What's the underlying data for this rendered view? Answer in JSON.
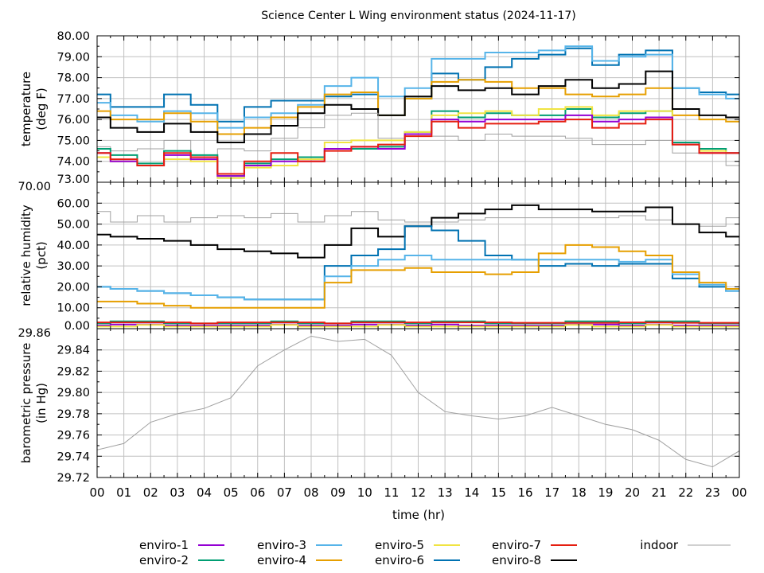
{
  "chart_data": {
    "type": "line",
    "title": "Science Center L Wing environment status (2024-11-17)",
    "xlabel": "time (hr)",
    "x": [
      0,
      1,
      2,
      3,
      4,
      5,
      6,
      7,
      8,
      9,
      10,
      11,
      12,
      13,
      14,
      15,
      16,
      17,
      18,
      19,
      20,
      21,
      22,
      23,
      24
    ],
    "xtick_labels": [
      "00",
      "01",
      "02",
      "03",
      "04",
      "05",
      "06",
      "07",
      "08",
      "09",
      "10",
      "11",
      "12",
      "13",
      "14",
      "15",
      "16",
      "17",
      "18",
      "19",
      "20",
      "21",
      "22",
      "23",
      "00"
    ],
    "xlim": [
      0,
      24
    ],
    "grid": true,
    "legend_placement": "bottom",
    "legend": [
      {
        "name": "enviro-1",
        "color": "#9400d3"
      },
      {
        "name": "enviro-2",
        "color": "#009e73"
      },
      {
        "name": "enviro-3",
        "color": "#56b4e9"
      },
      {
        "name": "enviro-4",
        "color": "#e69f00"
      },
      {
        "name": "enviro-5",
        "color": "#f0e442"
      },
      {
        "name": "enviro-6",
        "color": "#0072b2"
      },
      {
        "name": "enviro-7",
        "color": "#e51e10"
      },
      {
        "name": "enviro-8",
        "color": "#000000"
      },
      {
        "name": "indoor",
        "color": "#a0a0a0"
      }
    ],
    "panels": [
      {
        "ylabel": [
          "temperature",
          "(deg F)"
        ],
        "ylim": [
          73,
          80
        ],
        "yticks": [
          "73.00",
          "74.00",
          "75.00",
          "76.00",
          "77.00",
          "78.00",
          "79.00",
          "80.00"
        ],
        "series": {
          "enviro-6": [
            77.2,
            76.6,
            76.6,
            77.2,
            76.7,
            75.9,
            76.6,
            76.9,
            76.9,
            77.1,
            77.2,
            76.2,
            77.0,
            78.2,
            77.9,
            78.5,
            78.9,
            79.1,
            79.4,
            78.6,
            79.1,
            79.3,
            77.5,
            77.3,
            77.2
          ],
          "enviro-3": [
            76.8,
            76.2,
            75.9,
            76.4,
            76.3,
            75.6,
            76.1,
            76.3,
            76.7,
            77.6,
            78.0,
            77.1,
            77.5,
            78.9,
            78.9,
            79.2,
            79.2,
            79.3,
            79.5,
            78.8,
            79.0,
            79.1,
            77.5,
            77.2,
            77.0
          ],
          "enviro-4": [
            76.4,
            76.0,
            76.0,
            76.3,
            75.9,
            75.3,
            75.6,
            76.1,
            76.6,
            77.2,
            77.3,
            76.2,
            77.0,
            77.8,
            77.9,
            77.8,
            77.5,
            77.5,
            77.2,
            77.1,
            77.2,
            77.5,
            76.2,
            76.0,
            75.9
          ],
          "enviro-8": [
            76.1,
            75.6,
            75.4,
            75.8,
            75.4,
            74.9,
            75.3,
            75.7,
            76.3,
            76.7,
            76.5,
            76.2,
            77.1,
            77.6,
            77.4,
            77.5,
            77.2,
            77.6,
            77.9,
            77.5,
            77.7,
            78.3,
            76.5,
            76.2,
            76.1
          ],
          "indoor": [
            74.7,
            74.5,
            74.6,
            75.0,
            74.3,
            74.6,
            74.5,
            75.1,
            75.6,
            76.2,
            76.3,
            75.1,
            75.3,
            75.2,
            75.0,
            75.3,
            75.2,
            75.2,
            75.1,
            74.8,
            74.8,
            75.0,
            74.4,
            74.4,
            73.8
          ],
          "enviro-2": [
            74.6,
            74.3,
            73.9,
            74.5,
            74.3,
            73.3,
            73.9,
            74.1,
            74.2,
            74.6,
            74.6,
            74.7,
            75.4,
            76.4,
            76.1,
            76.3,
            76.2,
            76.2,
            76.5,
            76.1,
            76.3,
            76.4,
            74.9,
            74.6,
            74.4
          ],
          "enviro-5": [
            74.2,
            74.0,
            73.8,
            74.1,
            74.0,
            73.2,
            73.7,
            73.8,
            74.1,
            74.9,
            75.0,
            75.0,
            75.4,
            76.2,
            76.3,
            76.4,
            76.2,
            76.5,
            76.6,
            76.2,
            76.4,
            76.4,
            74.8,
            74.5,
            74.4
          ],
          "enviro-1": [
            74.4,
            74.0,
            73.8,
            74.3,
            74.1,
            73.3,
            73.8,
            74.0,
            74.0,
            74.6,
            74.7,
            74.6,
            75.3,
            76.0,
            75.9,
            76.0,
            76.0,
            76.0,
            76.2,
            75.9,
            76.0,
            76.1,
            74.8,
            74.4,
            74.4
          ],
          "enviro-7": [
            74.4,
            74.1,
            73.8,
            74.4,
            74.2,
            73.4,
            74.0,
            74.4,
            74.0,
            74.5,
            74.7,
            74.8,
            75.2,
            75.9,
            75.6,
            75.8,
            75.8,
            75.9,
            76.0,
            75.6,
            75.8,
            76.0,
            74.8,
            74.4,
            74.4
          ]
        }
      },
      {
        "ylabel": [
          "relative humidity",
          "(pct)"
        ],
        "ylim": [
          0,
          70
        ],
        "yticks": [
          "0.00",
          "10.00",
          "20.00",
          "30.00",
          "40.00",
          "50.00",
          "60.00",
          "70.00"
        ],
        "series": {
          "indoor": [
            56,
            51,
            54,
            51,
            53,
            54,
            53,
            55,
            51,
            54,
            56,
            52,
            51,
            51,
            52,
            53,
            53,
            53,
            53,
            53,
            54,
            52,
            50,
            49,
            53
          ],
          "enviro-8": [
            45,
            44,
            43,
            42,
            40,
            38,
            37,
            36,
            34,
            40,
            48,
            44,
            49,
            53,
            55,
            57,
            59,
            57,
            57,
            56,
            56,
            58,
            50,
            46,
            44
          ],
          "enviro-6": [
            20,
            19,
            18,
            17,
            16,
            15,
            14,
            14,
            14,
            30,
            35,
            38,
            49,
            47,
            42,
            35,
            33,
            30,
            31,
            30,
            31,
            31,
            24,
            20,
            18
          ],
          "enviro-3": [
            20,
            19,
            18,
            17,
            16,
            15,
            14,
            14,
            14,
            25,
            30,
            33,
            35,
            33,
            33,
            33,
            33,
            33,
            33,
            33,
            32,
            33,
            26,
            21,
            18
          ],
          "enviro-4": [
            13,
            13,
            12,
            11,
            10,
            10,
            10,
            10,
            10,
            22,
            28,
            28,
            29,
            27,
            27,
            26,
            27,
            36,
            40,
            39,
            37,
            35,
            27,
            22,
            19
          ],
          "enviro-2": [
            2.5,
            3.5,
            3.5,
            2.5,
            2.5,
            2.5,
            2.5,
            3.5,
            2.5,
            2.5,
            3.5,
            3.5,
            2.5,
            3.5,
            3.5,
            2.5,
            2.5,
            2.5,
            3.5,
            3.5,
            2.5,
            3.5,
            3.5,
            2.5,
            2.5
          ],
          "enviro-7": [
            3.0,
            3.0,
            3.0,
            3.0,
            2.5,
            3.0,
            3.0,
            3.0,
            3.0,
            2.5,
            3.0,
            3.0,
            3.0,
            3.0,
            3.0,
            3.0,
            2.8,
            2.8,
            2.8,
            2.8,
            3.0,
            3.0,
            2.8,
            2.8,
            2.8
          ],
          "enviro-1": [
            1.5,
            2.0,
            2.0,
            1.5,
            1.5,
            1.5,
            1.5,
            2.0,
            1.5,
            1.5,
            2.0,
            2.0,
            1.5,
            2.0,
            1.5,
            1.5,
            1.5,
            1.5,
            2.0,
            2.0,
            1.5,
            2.0,
            1.5,
            1.5,
            1.5
          ],
          "enviro-5": [
            1.0,
            1.0,
            1.8,
            1.0,
            1.0,
            1.0,
            1.0,
            1.8,
            1.0,
            1.0,
            1.0,
            1.8,
            1.0,
            1.0,
            1.0,
            1.0,
            1.0,
            1.0,
            1.8,
            1.0,
            1.0,
            1.8,
            1.0,
            1.0,
            1.0
          ]
        }
      },
      {
        "ylabel": [
          "barometric pressure",
          "(in Hg)"
        ],
        "ylim": [
          29.72,
          29.86
        ],
        "yticks": [
          "29.72",
          "29.74",
          "29.76",
          "29.78",
          "29.80",
          "29.82",
          "29.84",
          "29.86"
        ],
        "series": {
          "indoor": [
            29.746,
            29.752,
            29.772,
            29.78,
            29.785,
            29.795,
            29.825,
            29.84,
            29.853,
            29.848,
            29.85,
            29.835,
            29.8,
            29.782,
            29.778,
            29.775,
            29.778,
            29.786,
            29.778,
            29.77,
            29.765,
            29.755,
            29.737,
            29.73,
            29.745
          ]
        }
      }
    ]
  }
}
